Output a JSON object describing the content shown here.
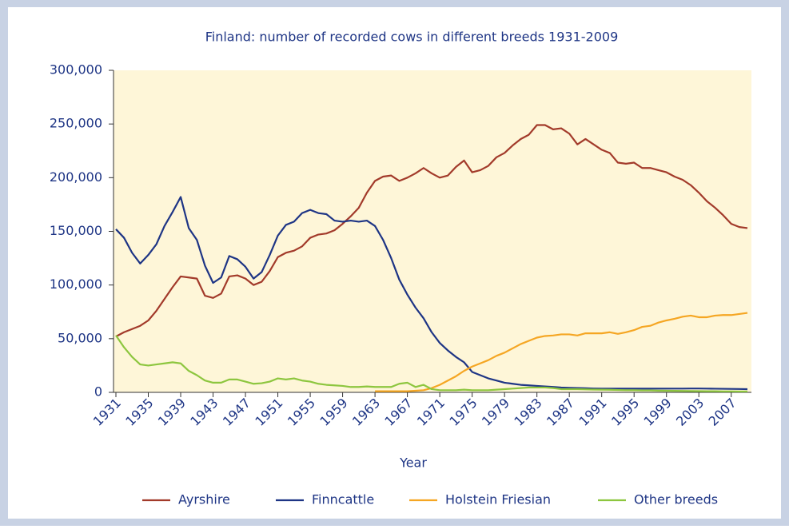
{
  "chart_data": {
    "type": "line",
    "title": "Finland: number of recorded cows in different breeds 1931-2009",
    "xlabel": "Year",
    "x": [
      1931,
      1932,
      1933,
      1934,
      1935,
      1936,
      1937,
      1938,
      1939,
      1940,
      1941,
      1942,
      1943,
      1944,
      1945,
      1946,
      1947,
      1948,
      1949,
      1950,
      1951,
      1952,
      1953,
      1954,
      1955,
      1956,
      1957,
      1958,
      1959,
      1960,
      1961,
      1962,
      1963,
      1964,
      1965,
      1966,
      1967,
      1968,
      1969,
      1970,
      1971,
      1972,
      1973,
      1974,
      1975,
      1976,
      1977,
      1978,
      1979,
      1980,
      1981,
      1982,
      1983,
      1984,
      1985,
      1986,
      1987,
      1988,
      1989,
      1990,
      1991,
      1992,
      1993,
      1994,
      1995,
      1996,
      1997,
      1998,
      1999,
      2000,
      2001,
      2002,
      2003,
      2004,
      2005,
      2006,
      2007,
      2008,
      2009
    ],
    "xlim": [
      1931,
      2009
    ],
    "xticks": [
      1931,
      1935,
      1939,
      1943,
      1947,
      1951,
      1955,
      1959,
      1963,
      1967,
      1971,
      1975,
      1979,
      1983,
      1987,
      1991,
      1995,
      1999,
      2003,
      2007
    ],
    "ylim": [
      0,
      300000
    ],
    "yticks": [
      0,
      {
        "value": 50000,
        "label": "50,000"
      },
      {
        "value": 100000,
        "label": "100,000"
      },
      {
        "value": 150000,
        "label": "150,000"
      },
      {
        "value": 200000,
        "label": "200,000"
      },
      {
        "value": 250000,
        "label": "250,000"
      },
      {
        "value": 300000,
        "label": "300,000"
      }
    ],
    "grid": false,
    "legend": "bottom",
    "series": [
      {
        "name": "Ayrshire",
        "color": "#a23a2a",
        "values": [
          52000,
          56000,
          59000,
          62000,
          67000,
          76000,
          87000,
          98000,
          108000,
          107000,
          106000,
          90000,
          88000,
          92000,
          108000,
          109000,
          106000,
          100000,
          103000,
          113000,
          126000,
          130000,
          132000,
          136000,
          144000,
          147000,
          148000,
          151000,
          157000,
          164000,
          172000,
          186000,
          197000,
          201000,
          202000,
          197000,
          200000,
          204000,
          209000,
          204000,
          200000,
          202000,
          210000,
          216000,
          205000,
          207000,
          211000,
          219000,
          223000,
          230000,
          236000,
          240000,
          249000,
          249000,
          245000,
          246000,
          241000,
          231000,
          236000,
          231000,
          226000,
          223000,
          214000,
          213000,
          214000,
          209000,
          209000,
          207000,
          205000,
          201000,
          198000,
          193000,
          186000,
          178000,
          172000,
          165000,
          157000,
          154000,
          153000
        ]
      },
      {
        "name": "Finncattle",
        "color": "#1e3585",
        "values": [
          152000,
          144000,
          130000,
          120000,
          128000,
          138000,
          155000,
          168000,
          182000,
          153000,
          142000,
          118000,
          102000,
          107000,
          127000,
          124000,
          117000,
          106000,
          112000,
          128000,
          146000,
          156000,
          159000,
          167000,
          170000,
          167000,
          166000,
          160000,
          159000,
          160000,
          159000,
          160000,
          155000,
          142000,
          125000,
          105000,
          91000,
          79000,
          69000,
          56000,
          46000,
          39000,
          33000,
          28000,
          19000,
          16000,
          13000,
          11000,
          9000,
          8000,
          7000,
          6500,
          6000,
          5500,
          5000,
          4500,
          4200,
          4000,
          3800,
          3600,
          3500,
          3500,
          3500,
          3500,
          3500,
          3500,
          3500,
          3500,
          3500,
          3500,
          3500,
          3600,
          3600,
          3500,
          3400,
          3300,
          3200,
          3100,
          3000
        ]
      },
      {
        "name": "Holstein Friesian",
        "color": "#f5a623",
        "values": [
          null,
          null,
          null,
          null,
          null,
          null,
          null,
          null,
          null,
          null,
          null,
          null,
          null,
          null,
          null,
          null,
          null,
          null,
          null,
          null,
          null,
          null,
          null,
          null,
          null,
          null,
          null,
          null,
          null,
          null,
          null,
          null,
          1000,
          1000,
          1000,
          1000,
          1000,
          1500,
          2000,
          4000,
          7000,
          11000,
          15000,
          20000,
          24000,
          27000,
          30000,
          34000,
          37000,
          41000,
          45000,
          48000,
          51000,
          52500,
          53000,
          54000,
          54000,
          53000,
          55000,
          55000,
          55000,
          56000,
          54500,
          56000,
          58000,
          61000,
          62000,
          65000,
          67000,
          68500,
          70500,
          71500,
          70000,
          70000,
          71500,
          72000,
          72000,
          73000,
          74000
        ]
      },
      {
        "name": "Other breeds",
        "color": "#8dc63f",
        "values": [
          53000,
          42000,
          33000,
          26000,
          25000,
          26000,
          27000,
          28000,
          27000,
          20000,
          16000,
          11000,
          9000,
          9000,
          12000,
          12000,
          10000,
          8000,
          8500,
          10000,
          13000,
          12000,
          13000,
          11000,
          10000,
          8000,
          7000,
          6500,
          6000,
          5000,
          5000,
          5500,
          5000,
          5000,
          5000,
          8000,
          9000,
          5000,
          7000,
          3000,
          2000,
          2000,
          2000,
          2500,
          2000,
          2000,
          2000,
          2500,
          3000,
          3500,
          4000,
          4500,
          4500,
          4500,
          4000,
          3000,
          3000,
          3000,
          2800,
          2600,
          2500,
          2400,
          2200,
          2000,
          2000,
          1800,
          1800,
          1600,
          1500,
          1400,
          1300,
          1200,
          1100,
          1000,
          1000,
          900,
          900,
          800,
          800
        ]
      }
    ]
  }
}
